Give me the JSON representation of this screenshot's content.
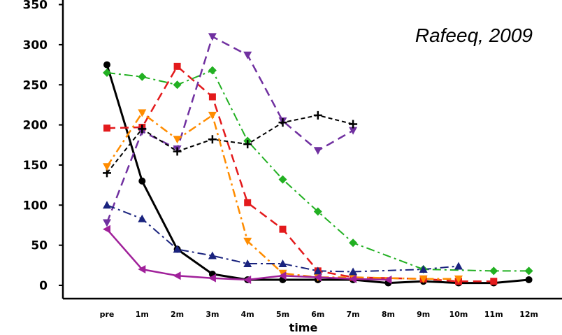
{
  "chart_data": {
    "type": "line",
    "annotation": "Rafeeq, 2009",
    "xlabel": "time",
    "ylabel": "",
    "categories": [
      "pre",
      "1m",
      "2m",
      "3m",
      "4m",
      "5m",
      "6m",
      "7m",
      "8m",
      "9m",
      "10m",
      "11m",
      "12m"
    ],
    "ylim": [
      0,
      350
    ],
    "yticks": [
      0,
      50,
      100,
      150,
      200,
      250,
      300,
      350
    ],
    "grid": false,
    "series": [
      {
        "color": "#000000",
        "marker": "circle",
        "dash": "solid",
        "width": 3,
        "values": [
          275,
          130,
          45,
          14,
          7,
          7,
          7,
          7,
          3,
          5,
          3,
          3,
          7
        ]
      },
      {
        "color": "#e31a1c",
        "marker": "square",
        "dash": "long",
        "width": 2.5,
        "values": [
          196,
          197,
          273,
          235,
          103,
          70,
          18,
          10,
          null,
          8,
          5,
          5,
          null
        ]
      },
      {
        "color": "#22b022",
        "marker": "diamond",
        "dash": "dashdot",
        "width": 2,
        "values": [
          265,
          260,
          250,
          268,
          180,
          132,
          92,
          53,
          null,
          20,
          null,
          18,
          18
        ]
      },
      {
        "color": "#7030a0",
        "marker": "triangle-down",
        "dash": "long",
        "width": 2.5,
        "values": [
          78,
          192,
          170,
          310,
          287,
          205,
          168,
          193,
          null,
          null,
          null,
          null,
          null
        ]
      },
      {
        "color": "#000000",
        "marker": "plus",
        "dash": "short",
        "width": 2,
        "values": [
          140,
          195,
          167,
          182,
          176,
          203,
          212,
          201,
          null,
          null,
          null,
          null,
          null
        ]
      },
      {
        "color": "#ff8c00",
        "marker": "triangle-down",
        "dash": "dashdot",
        "width": 2.5,
        "values": [
          148,
          215,
          182,
          212,
          55,
          15,
          10,
          10,
          null,
          8,
          8,
          null,
          null
        ]
      },
      {
        "color": "#1a237e",
        "marker": "triangle-up",
        "dash": "dashdot",
        "width": 2,
        "values": [
          100,
          83,
          45,
          37,
          27,
          27,
          18,
          17,
          null,
          20,
          24,
          null,
          null
        ]
      },
      {
        "color": "#a0209a",
        "marker": "triangle-left",
        "dash": "solid",
        "width": 2.5,
        "values": [
          70,
          20,
          12,
          9,
          7,
          12,
          10,
          8,
          7,
          null,
          null,
          null,
          null
        ]
      }
    ]
  }
}
